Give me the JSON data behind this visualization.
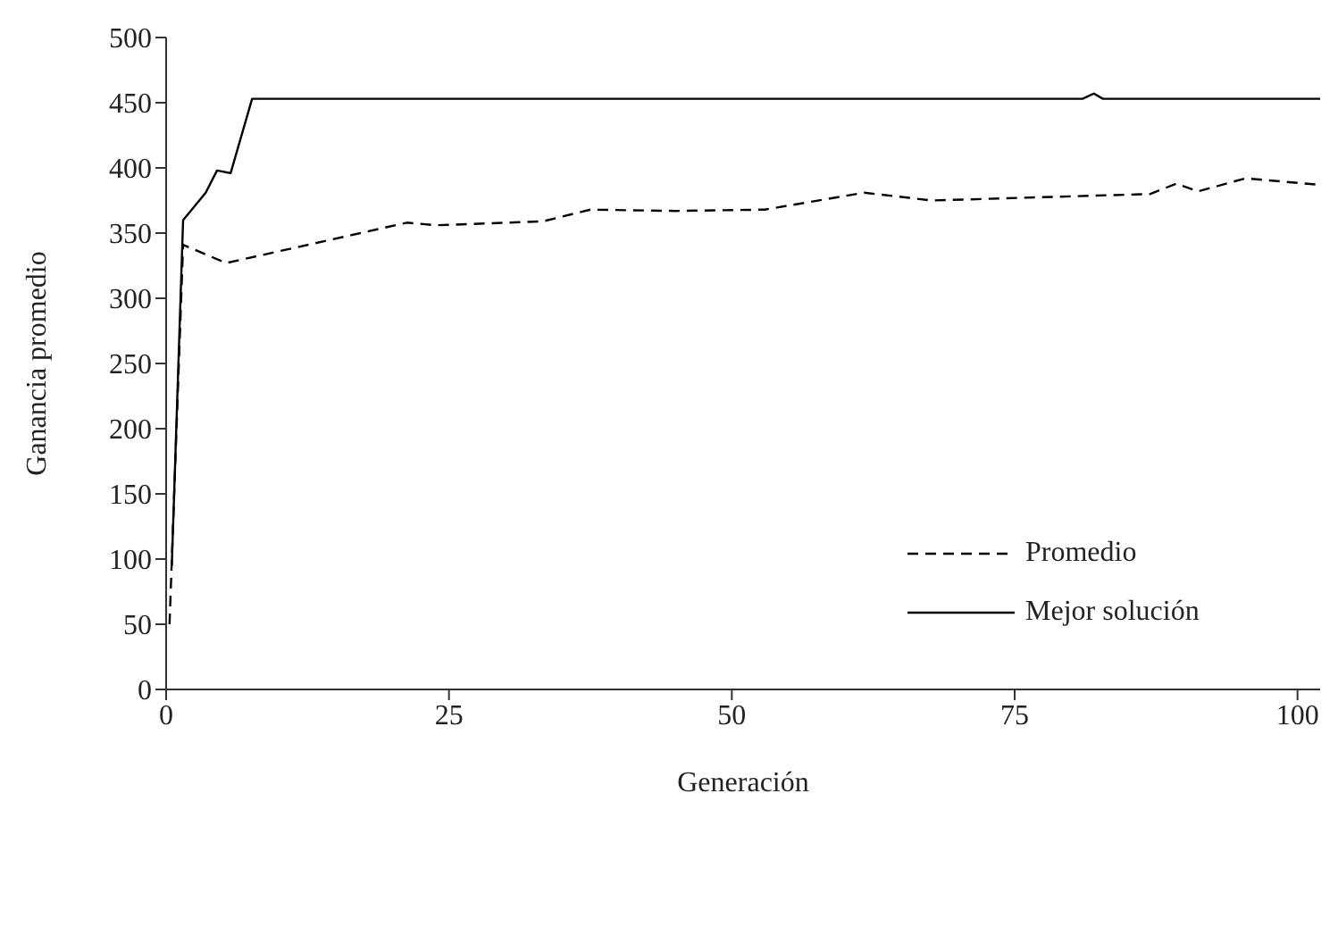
{
  "chart_data": {
    "type": "line",
    "xlabel": "Generación",
    "ylabel": "Ganancia promedio",
    "xlim": [
      0,
      102
    ],
    "xticks": [
      0,
      25,
      50,
      75,
      100
    ],
    "ylim": [
      0,
      500
    ],
    "yticks": [
      0,
      50,
      100,
      150,
      200,
      250,
      300,
      350,
      400,
      450,
      500
    ],
    "grid": false,
    "legend": "right",
    "marker": "none",
    "series": [
      {
        "name": "Promedio",
        "color": "#000000",
        "line_style": "dashed",
        "x": [
          0.3,
          1.5,
          5.3,
          21.3,
          23.9,
          33.3,
          37.5,
          45,
          52.9,
          61.7,
          67.7,
          87,
          89.3,
          91.2,
          95.4,
          102
        ],
        "values": [
          50,
          341,
          327,
          358,
          356,
          359,
          368,
          367,
          368,
          381,
          375,
          380,
          388,
          382,
          392,
          387
        ]
      },
      {
        "name": "Mejor solución",
        "color": "#000000",
        "line_style": "solid",
        "x": [
          0.5,
          1.5,
          3.5,
          4.5,
          5.7,
          7.6,
          81,
          82,
          82.8,
          102
        ],
        "values": [
          95,
          360,
          381,
          398,
          396,
          453,
          453,
          457,
          453,
          453
        ]
      }
    ]
  }
}
